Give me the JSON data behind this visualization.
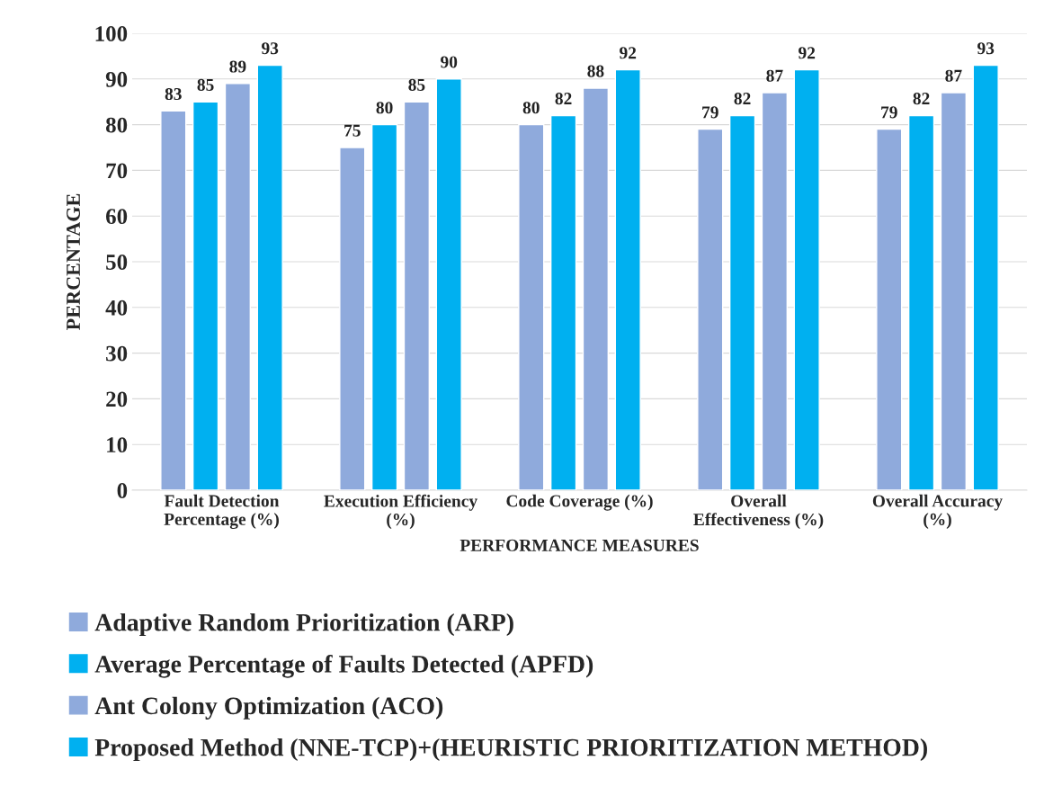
{
  "chart_data": {
    "type": "bar",
    "xlabel": "PERFORMANCE MEASURES",
    "ylabel": "PERCENTAGE",
    "categories": [
      "Fault Detection\nPercentage (%)",
      "Execution Efficiency\n(%)",
      "Code Coverage (%)",
      "Overall\nEffectiveness (%)",
      "Overall Accuracy\n(%)"
    ],
    "series": [
      {
        "name": "Adaptive Random Prioritization (ARP)",
        "color": "#8faadc",
        "values": [
          83,
          75,
          80,
          79,
          79
        ]
      },
      {
        "name": "Average Percentage of Faults Detected (APFD)",
        "color": "#00b0f0",
        "values": [
          85,
          80,
          82,
          82,
          82
        ]
      },
      {
        "name": "Ant Colony Optimization (ACO)",
        "color": "#8faadc",
        "values": [
          89,
          85,
          88,
          87,
          87
        ]
      },
      {
        "name": "Proposed Method (NNE-TCP)+(HEURISTIC PRIORITIZATION METHOD)",
        "color": "#00b0f0",
        "values": [
          93,
          90,
          92,
          92,
          93
        ]
      }
    ],
    "ylim": [
      0,
      100
    ],
    "yticks": [
      0,
      10,
      20,
      30,
      40,
      50,
      60,
      70,
      80,
      90,
      100
    ],
    "grid": "y",
    "legend": "bottom",
    "data_labels": true
  }
}
